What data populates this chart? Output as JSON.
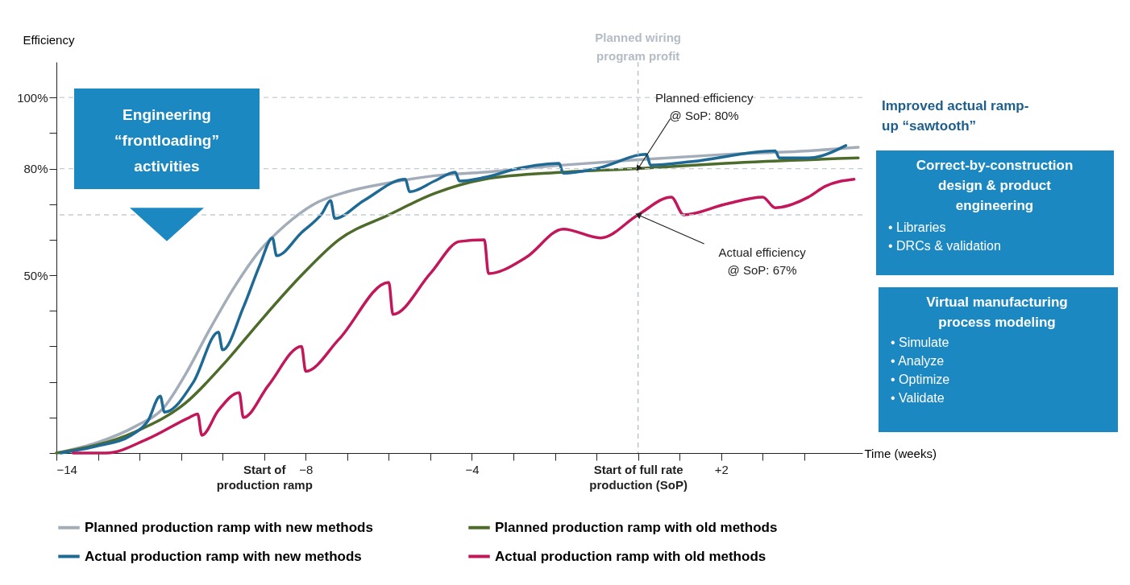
{
  "chart_data": {
    "type": "line",
    "xlabel": "Time (weeks)",
    "ylabel": "Efficiency",
    "xlim": [
      -14,
      5.4
    ],
    "ylim": [
      0,
      110
    ],
    "xticks": [
      -14,
      {
        "value": -13,
        "label": null
      },
      {
        "value": -12,
        "label": null
      },
      {
        "value": -11,
        "label": null
      },
      {
        "value": -10,
        "label": null
      },
      {
        "value": -9,
        "label": "Start of\nproduction ramp"
      },
      -8,
      {
        "value": -7,
        "label": null
      },
      {
        "value": -6,
        "label": null
      },
      {
        "value": -5,
        "label": null
      },
      -4,
      {
        "value": -3,
        "label": null
      },
      {
        "value": -2,
        "label": null
      },
      {
        "value": -1,
        "label": null
      },
      {
        "value": 0,
        "label": "Start of full rate\nproduction (SoP)"
      },
      {
        "value": 1,
        "label": null
      },
      {
        "value": 2,
        "label": "+2"
      },
      {
        "value": 3,
        "label": null
      },
      {
        "value": 4,
        "label": null
      }
    ],
    "yticks": [
      {
        "value": 0,
        "label": null
      },
      {
        "value": 10,
        "label": null
      },
      {
        "value": 20,
        "label": null
      },
      {
        "value": 30,
        "label": null
      },
      {
        "value": 40,
        "label": null
      },
      {
        "value": 50,
        "label": "50%"
      },
      {
        "value": 60,
        "label": null
      },
      {
        "value": 70,
        "label": null
      },
      {
        "value": 80,
        "label": "80%"
      },
      {
        "value": 90,
        "label": null
      },
      {
        "value": 100,
        "label": "100%"
      }
    ],
    "line_style": "solid",
    "legend": "bottom",
    "series": [
      {
        "name": "Planned production ramp with new methods",
        "color": "#a3adba",
        "x": [
          -14,
          -13,
          -12.1,
          -11.4,
          -10.9,
          -10.3,
          -9.7,
          -9.1,
          -8.5,
          -7.8,
          -7,
          -6,
          -4.9,
          -3.7,
          -1.8,
          0,
          2.1,
          4.1,
          5.3
        ],
        "values": [
          0,
          3,
          7.5,
          13,
          22,
          35,
          47,
          57,
          64,
          70,
          73.5,
          76,
          78,
          79,
          81,
          82.5,
          84,
          85,
          86
        ]
      },
      {
        "name": "Planned production ramp with old methods",
        "color": "#4d6b2b",
        "x": [
          -14,
          -12.1,
          -10.9,
          -9.9,
          -9.1,
          -8.1,
          -7.2,
          -6,
          -4.9,
          -3.7,
          -1.8,
          0,
          2.1,
          5.3
        ],
        "values": [
          0,
          6,
          14,
          26,
          37,
          50,
          60,
          67,
          73,
          77,
          79,
          80,
          81.5,
          83
        ]
      },
      {
        "name": "Actual production ramp with new methods",
        "color": "#1f6a94",
        "x": [
          -13.9,
          -13,
          -12.2,
          -11.8,
          -11.5,
          -11.4,
          -10.7,
          -10.1,
          -10.0,
          -9.5,
          -9.1,
          -8.8,
          -8.7,
          -8.1,
          -7.6,
          -7.4,
          -7.3,
          -6.6,
          -5.6,
          -5.5,
          -4.9,
          -4.4,
          -4.3,
          -3.7,
          -2.9,
          -1.9,
          -1.8,
          -1,
          0.2,
          0.3,
          1.3,
          3.3,
          3.4,
          4.1,
          5
        ],
        "values": [
          0,
          2,
          5,
          9,
          16,
          11.5,
          20,
          34,
          29,
          41,
          53,
          60.5,
          55.5,
          62,
          67.5,
          71,
          66,
          71,
          77,
          73.5,
          76.5,
          79,
          76.5,
          77.5,
          80,
          81.5,
          78.7,
          80,
          84,
          81,
          82,
          85,
          83,
          83,
          86.5
        ]
      },
      {
        "name": "Actual production ramp with old methods",
        "color": "#c2185b",
        "x": [
          -13.6,
          -12.8,
          -11.8,
          -10.8,
          -10.6,
          -10.5,
          -10.1,
          -9.6,
          -9.5,
          -8.9,
          -8.1,
          -8.0,
          -7.2,
          -6.0,
          -5.9,
          -5,
          -4.3,
          -3.7,
          -3.6,
          -2.7,
          -1.8,
          -0.9,
          0,
          0.8,
          1.1,
          2.1,
          3,
          3.3,
          4.1,
          4.5,
          5.2
        ],
        "values": [
          0,
          0,
          4,
          10,
          11,
          5,
          12,
          17,
          10,
          19,
          30,
          23,
          32,
          48,
          39,
          50.5,
          59.5,
          60,
          50.5,
          55,
          63,
          60.5,
          67,
          72,
          67,
          70,
          72,
          69,
          72,
          75,
          77
        ]
      }
    ],
    "ref_lines": [
      {
        "axis": "x",
        "value": 0,
        "label": "Planned wiring\nprogram profit",
        "color": "#b4bcc6",
        "line_style": "dashed"
      },
      {
        "axis": "y",
        "value": 100,
        "color": "#c5ccd4",
        "line_style": "dashed"
      },
      {
        "axis": "y",
        "value": 80,
        "color": "#c5ccd4",
        "line_style": "dashed"
      },
      {
        "axis": "y",
        "value": 67,
        "color": "#c5ccd4",
        "line_style": "dashed"
      }
    ],
    "annotations": [
      "Engineering\n“frontloading”\nactivities",
      "Improved actual ramp-\nup “sawtooth”",
      "Correct-by-construction\ndesign & product\nengineering",
      "•   Libraries",
      "•   DRCs & validation",
      "Virtual manufacturing\nprocess modeling",
      "•   Simulate",
      "•   Analyze",
      "•   Optimize",
      "•   Validate",
      {
        "text": "Planned efficiency\n@ SoP: 80%",
        "x": 0,
        "y": 80
      },
      {
        "text": "Actual efficiency\n@ SoP: 67%",
        "x": 0,
        "y": 67
      }
    ]
  }
}
